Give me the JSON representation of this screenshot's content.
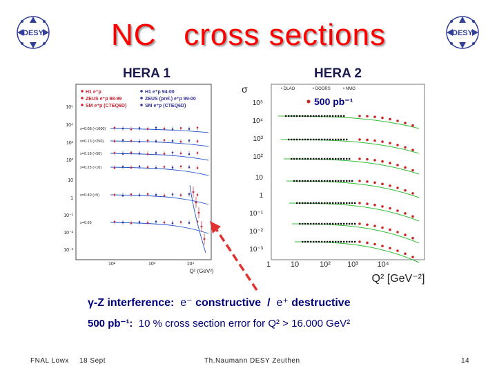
{
  "title": "NC   cross sections",
  "logo_text": "DESY",
  "left_label": "HERA 1",
  "right_label": "HERA 2",
  "left_plot": {
    "legend": [
      "H1 e⁺p",
      "ZEUS e⁺p 98-99",
      "SM e⁺p (CTEQ6D)",
      "H1 e⁺p 94-00",
      "ZEUS (prel.) e⁺p 99-00",
      "SM e⁺p (CTEQ6D)"
    ],
    "y_ticks": [
      "10⁵",
      "10⁴",
      "10³",
      "10²",
      "10",
      "1",
      "10⁻¹",
      "10⁻²",
      "10⁻³"
    ],
    "x_ticks": [
      "10²",
      "10³",
      "10⁴"
    ],
    "row_labels": [
      "x=0.08 (×1000)",
      "x=0.13 (×250)",
      "x=0.18 (×50)",
      "x=0.25 (×10)",
      "x=0.40 (×5)",
      "x=0.65"
    ],
    "xlabel": "Q² (GeV²)"
  },
  "right_plot": {
    "sigma": "σ",
    "legend": [
      "• DLAO",
      "• DOORS",
      "• NMO"
    ],
    "lumi": "500 pb⁻¹",
    "y_ticks": [
      "10⁵",
      "10⁴",
      "10³",
      "10²",
      "10",
      "1",
      "10⁻¹",
      "10⁻²",
      "10⁻³"
    ],
    "x_ticks": [
      "1",
      "10",
      "10²",
      "10³",
      "10⁴"
    ],
    "xlabel": "Q² [GeV⁻²]"
  },
  "line1": {
    "lead": "γ-Z interference:",
    "e_minus": "e⁻",
    "constructive": "constructive",
    "slash": "/",
    "e_plus": "e⁺",
    "destructive": "destructive"
  },
  "line2": {
    "lumi": "500 pb⁻¹:",
    "text": "10 % cross section error  for Q² > 16.000 GeV²"
  },
  "footer": {
    "left": "FNAL Lowx",
    "date": "18 Sept",
    "author": "Th.Naumann",
    "affil": "DESY Zeuthen",
    "page": "14"
  },
  "colors": {
    "title": "#ff0000",
    "label": "#1a1a4e",
    "text": "#00007a",
    "arrow": "#e03030",
    "h1": "#cc2233",
    "zeus": "#333399",
    "sm_curve": "#2255cc",
    "nmo_curve": "#33bb33"
  }
}
